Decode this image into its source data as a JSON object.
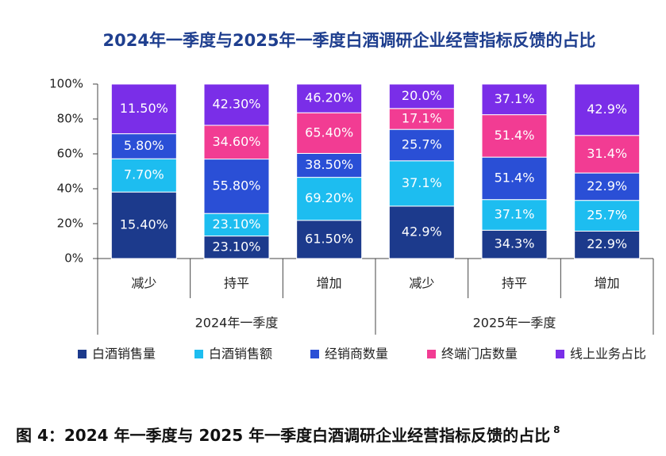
{
  "chart_data": {
    "type": "bar",
    "stacked": true,
    "normalize": true,
    "title": "2024年一季度与2025年一季度白酒调研企业经营指标反馈的占比",
    "categories": [
      "减少",
      "持平",
      "增加",
      "减少",
      "持平",
      "增加"
    ],
    "groups": [
      "2024年一季度",
      "2025年一季度"
    ],
    "ylim": [
      0,
      100
    ],
    "yticks": [
      {
        "value": 0,
        "label": "0%"
      },
      {
        "value": 20,
        "label": "20%"
      },
      {
        "value": 40,
        "label": "40%"
      },
      {
        "value": 60,
        "label": "60%"
      },
      {
        "value": 80,
        "label": "80%"
      },
      {
        "value": 100,
        "label": "100%"
      }
    ],
    "legend": "bottom",
    "series": [
      {
        "name": "白酒销售量",
        "color": "#1c3a8c",
        "values": [
          15.4,
          23.1,
          61.5,
          42.9,
          34.3,
          22.9
        ],
        "value_labels": [
          "15.40%",
          "23.10%",
          "61.50%",
          "42.9%",
          "34.3%",
          "22.9%"
        ]
      },
      {
        "name": "白酒销售额",
        "color": "#1dbdf0",
        "values": [
          7.7,
          23.1,
          69.2,
          37.1,
          37.1,
          25.7
        ],
        "value_labels": [
          "7.70%",
          "23.10%",
          "69.20%",
          "37.1%",
          "37.1%",
          "25.7%"
        ]
      },
      {
        "name": "经销商数量",
        "color": "#2a4fd6",
        "values": [
          5.8,
          55.8,
          38.5,
          25.7,
          51.4,
          22.9
        ],
        "value_labels": [
          "5.80%",
          "55.80%",
          "38.50%",
          "25.7%",
          "51.4%",
          "22.9%"
        ]
      },
      {
        "name": "终端门店数量",
        "color": "#f23c93",
        "values": [
          null,
          34.6,
          65.4,
          17.1,
          51.4,
          31.4
        ],
        "value_labels": [
          null,
          "34.60%",
          "65.40%",
          "17.1%",
          "51.4%",
          "31.4%"
        ]
      },
      {
        "name": "线上业务占比",
        "color": "#7a2ee8",
        "values": [
          11.5,
          42.3,
          46.2,
          20.0,
          37.1,
          42.9
        ],
        "value_labels": [
          "11.50%",
          "42.30%",
          "46.20%",
          "20.0%",
          "37.1%",
          "42.9%"
        ]
      }
    ]
  },
  "caption": "图 4：2024 年一季度与 2025 年一季度白酒调研企业经营指标反馈的占比",
  "caption_note": "8"
}
